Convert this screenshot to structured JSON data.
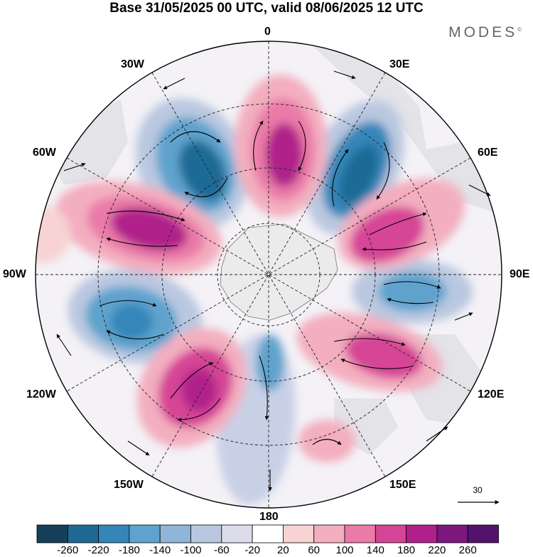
{
  "title": "Base 31/05/2025 00 UTC, valid 08/06/2025 12 UTC",
  "brand": "MODES",
  "brand_mark": "©",
  "labels": {
    "lon_0": "0",
    "lon_30e": "30E",
    "lon_60e": "60E",
    "lon_90e": "90E",
    "lon_120e": "120E",
    "lon_150e": "150E",
    "lon_180": "180",
    "lon_150w": "150W",
    "lon_120w": "120W",
    "lon_90w": "90W",
    "lon_60w": "60W",
    "lon_30w": "30W"
  },
  "wind_scale_label": "30",
  "colorbar": {
    "ticks": [
      "-260",
      "-220",
      "-180",
      "-140",
      "-100",
      "-60",
      "-20",
      "20",
      "60",
      "100",
      "140",
      "180",
      "220",
      "260"
    ],
    "colors": [
      "#16405a",
      "#1e6a95",
      "#3486b9",
      "#5ea3cd",
      "#8fb6d8",
      "#b9c7e0",
      "#dcdcec",
      "#ffffff",
      "#f7d3d3",
      "#f3aebf",
      "#ea7aa8",
      "#d64496",
      "#b0208a",
      "#7c177e",
      "#53136c"
    ]
  },
  "anomaly_colors": {
    "neutral": "#ebebeb",
    "land": "#e6e6e6"
  }
}
